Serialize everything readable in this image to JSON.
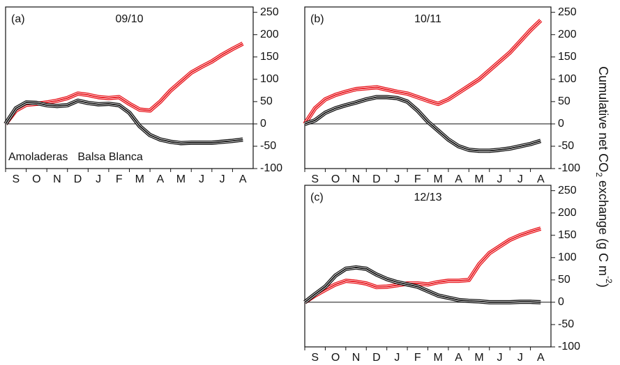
{
  "chart_data": [
    {
      "type": "line",
      "label": "(a)",
      "title": "09/10",
      "categories": [
        "S",
        null,
        "O",
        null,
        "N",
        null,
        "D",
        null,
        "J",
        null,
        "F",
        null,
        "M",
        null,
        "A",
        null,
        "M",
        null,
        "J",
        null,
        "J",
        null,
        "A",
        null
      ],
      "series": [
        {
          "name": "Amoladeras",
          "color": "#e8141b",
          "values": [
            0,
            30,
            43,
            45,
            48,
            52,
            58,
            68,
            65,
            60,
            58,
            60,
            45,
            32,
            30,
            50,
            75,
            95,
            115,
            128,
            140,
            155,
            168,
            180
          ]
        },
        {
          "name": "Balsa Blanca",
          "color": "#111111",
          "values": [
            0,
            35,
            48,
            47,
            42,
            40,
            42,
            52,
            47,
            44,
            45,
            42,
            25,
            -5,
            -25,
            -35,
            -40,
            -43,
            -42,
            -42,
            -42,
            -40,
            -38,
            -35
          ]
        }
      ],
      "legend": "bottom-left",
      "ylim": [
        -100,
        262
      ],
      "yticks": [
        -100,
        -50,
        0,
        50,
        100,
        150,
        200,
        250
      ]
    },
    {
      "type": "line",
      "label": "(b)",
      "title": "10/11",
      "categories": [
        "S",
        null,
        "O",
        null,
        "N",
        null,
        "D",
        null,
        "J",
        null,
        "F",
        null,
        "M",
        null,
        "A",
        null,
        "M",
        null,
        "J",
        null,
        "J",
        null,
        "A",
        null
      ],
      "series": [
        {
          "color": "#e8141b",
          "values": [
            0,
            35,
            55,
            65,
            72,
            78,
            80,
            82,
            77,
            72,
            68,
            60,
            52,
            45,
            55,
            70,
            85,
            100,
            120,
            140,
            160,
            185,
            210,
            232
          ]
        },
        {
          "color": "#111111",
          "values": [
            0,
            8,
            25,
            35,
            42,
            48,
            55,
            60,
            60,
            58,
            50,
            30,
            5,
            -15,
            -35,
            -50,
            -58,
            -60,
            -60,
            -58,
            -55,
            -50,
            -45,
            -38
          ]
        }
      ],
      "ylim": [
        -100,
        262
      ],
      "yticks": [
        -100,
        -50,
        0,
        50,
        100,
        150,
        200,
        250
      ]
    },
    {
      "type": "line",
      "label": "(c)",
      "title": "12/13",
      "categories": [
        "S",
        null,
        "O",
        null,
        "N",
        null,
        "D",
        null,
        "J",
        null,
        "F",
        null,
        "M",
        null,
        "A",
        null,
        "M",
        null,
        "J",
        null,
        "J",
        null,
        "A",
        null
      ],
      "series": [
        {
          "color": "#e8141b",
          "values": [
            0,
            15,
            28,
            40,
            48,
            46,
            42,
            34,
            35,
            38,
            42,
            42,
            40,
            45,
            48,
            48,
            50,
            85,
            110,
            125,
            140,
            150,
            158,
            165
          ]
        },
        {
          "color": "#111111",
          "values": [
            0,
            18,
            35,
            60,
            75,
            78,
            75,
            62,
            52,
            45,
            40,
            35,
            25,
            15,
            10,
            5,
            3,
            2,
            0,
            0,
            0,
            1,
            1,
            0
          ]
        }
      ],
      "ylim": [
        -100,
        262
      ],
      "yticks": [
        -100,
        -50,
        0,
        50,
        100,
        150,
        200,
        250
      ]
    }
  ],
  "ylabel": [
    "Cumulative net CO",
    "2",
    " exchange (g C m",
    "-2",
    ")"
  ]
}
